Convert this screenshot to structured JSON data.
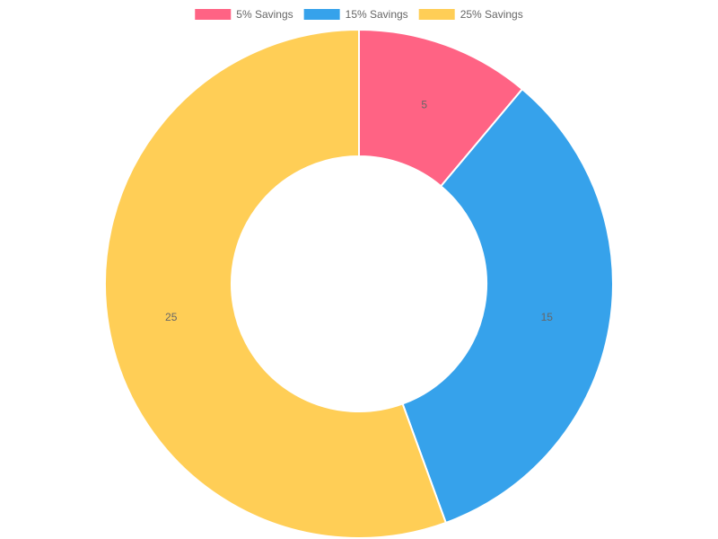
{
  "chart_data": {
    "type": "pie",
    "variant": "doughnut",
    "categories": [
      "5% Savings",
      "15% Savings",
      "25% Savings"
    ],
    "values": [
      5,
      15,
      25
    ],
    "data_labels": [
      "5",
      "15",
      "25"
    ],
    "colors": [
      "#ff6384",
      "#36a2eb",
      "#ffce56"
    ],
    "legend_position": "top",
    "title": ""
  }
}
